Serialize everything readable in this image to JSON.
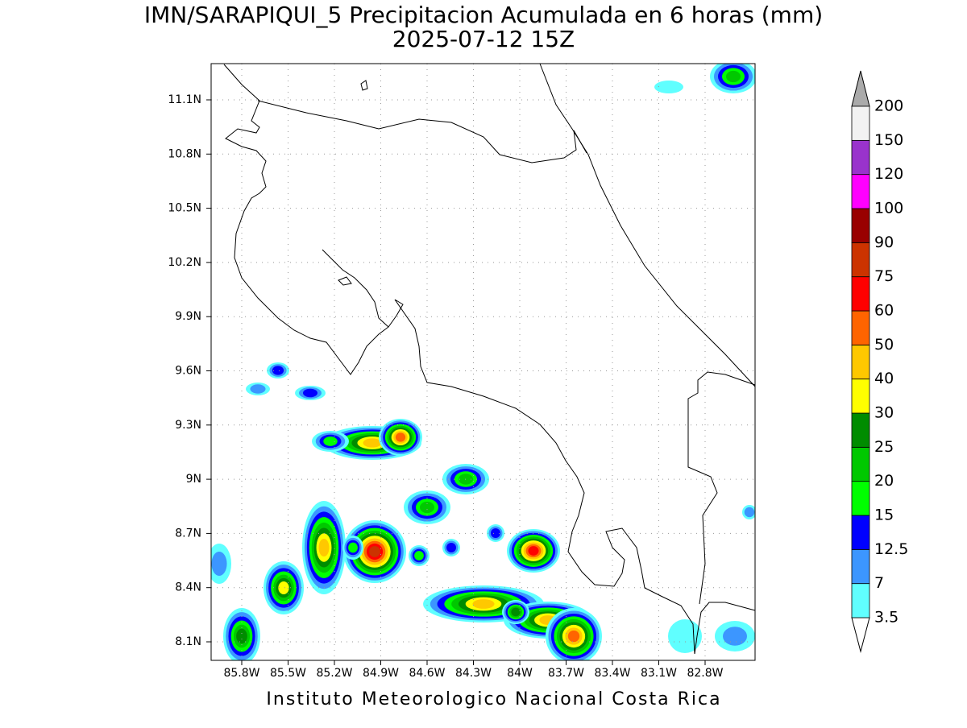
{
  "map": {
    "title": "IMN/SARAPIQUI_5 Precipitacion Acumulada en 6 horas (mm)",
    "subtitle": "2025-07-12 15Z",
    "footer": "Instituto Meteorologico Nacional Costa Rica",
    "lon_ticks": [
      "85.8W",
      "85.5W",
      "85.2W",
      "84.9W",
      "84.6W",
      "84.3W",
      "84W",
      "83.7W",
      "83.4W",
      "83.1W",
      "82.8W"
    ],
    "lat_ticks": [
      "11.1N",
      "10.8N",
      "10.5N",
      "10.2N",
      "9.9N",
      "9.6N",
      "9.3N",
      "9N",
      "8.7N",
      "8.4N",
      "8.1N"
    ],
    "colorbar": {
      "levels": [
        3.5,
        7,
        12.5,
        15,
        20,
        25,
        30,
        40,
        50,
        60,
        75,
        90,
        100,
        120,
        150,
        200
      ],
      "colors": [
        "#60ffff",
        "#3c96ff",
        "#0000ff",
        "#00ff00",
        "#00c800",
        "#008c00",
        "#ffff00",
        "#ffc800",
        "#ff6400",
        "#ff0000",
        "#cc3300",
        "#990000",
        "#ff00ff",
        "#9933cc",
        "#f2f2f2"
      ],
      "under_color": "#ffffff",
      "over_color": "#aaaaaa"
    }
  }
}
